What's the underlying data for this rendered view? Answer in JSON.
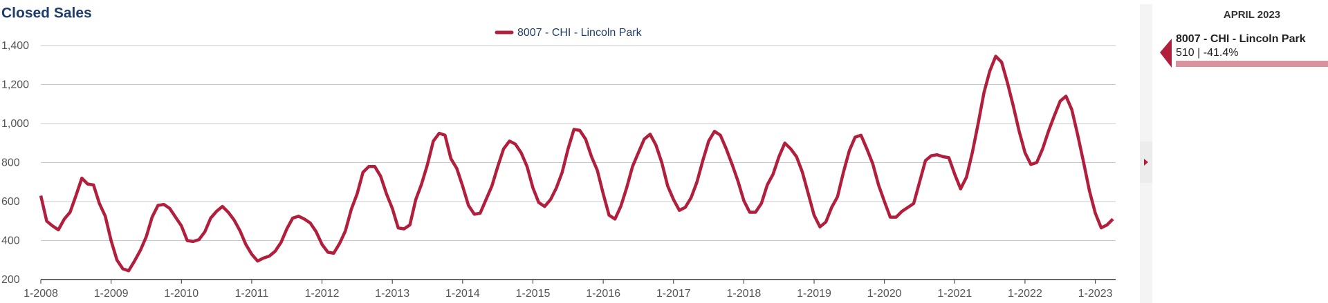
{
  "chart_data": {
    "type": "line",
    "title": "Closed Sales",
    "categories": [
      "1-2008",
      null,
      null,
      null,
      null,
      null,
      null,
      null,
      null,
      null,
      null,
      null,
      "1-2009",
      null,
      null,
      null,
      null,
      null,
      null,
      null,
      null,
      null,
      null,
      null,
      "1-2010",
      null,
      null,
      null,
      null,
      null,
      null,
      null,
      null,
      null,
      null,
      null,
      "1-2011",
      null,
      null,
      null,
      null,
      null,
      null,
      null,
      null,
      null,
      null,
      null,
      "1-2012",
      null,
      null,
      null,
      null,
      null,
      null,
      null,
      null,
      null,
      null,
      null,
      "1-2013",
      null,
      null,
      null,
      null,
      null,
      null,
      null,
      null,
      null,
      null,
      null,
      "1-2014",
      null,
      null,
      null,
      null,
      null,
      null,
      null,
      null,
      null,
      null,
      null,
      "1-2015",
      null,
      null,
      null,
      null,
      null,
      null,
      null,
      null,
      null,
      null,
      null,
      "1-2016",
      null,
      null,
      null,
      null,
      null,
      null,
      null,
      null,
      null,
      null,
      null,
      "1-2017",
      null,
      null,
      null,
      null,
      null,
      null,
      null,
      null,
      null,
      null,
      null,
      "1-2018",
      null,
      null,
      null,
      null,
      null,
      null,
      null,
      null,
      null,
      null,
      null,
      "1-2019",
      null,
      null,
      null,
      null,
      null,
      null,
      null,
      null,
      null,
      null,
      null,
      "1-2020",
      null,
      null,
      null,
      null,
      null,
      null,
      null,
      null,
      null,
      null,
      null,
      "1-2021",
      null,
      null,
      null,
      null,
      null,
      null,
      null,
      null,
      null,
      null,
      null,
      "1-2022",
      null,
      null,
      null,
      null,
      null,
      null,
      null,
      null,
      null,
      null,
      null,
      "1-2023",
      null,
      null,
      null
    ],
    "series": [
      {
        "name": "8007 - CHI - Lincoln Park",
        "color": "#b11f3d",
        "values": [
          630,
          500,
          475,
          455,
          510,
          545,
          630,
          720,
          690,
          685,
          590,
          525,
          400,
          300,
          255,
          245,
          295,
          350,
          420,
          520,
          580,
          585,
          565,
          520,
          475,
          400,
          395,
          405,
          445,
          515,
          550,
          575,
          545,
          505,
          450,
          380,
          330,
          295,
          310,
          320,
          345,
          390,
          460,
          515,
          525,
          510,
          490,
          445,
          380,
          340,
          335,
          385,
          450,
          560,
          640,
          750,
          780,
          780,
          730,
          640,
          565,
          465,
          460,
          480,
          610,
          690,
          790,
          910,
          950,
          940,
          820,
          770,
          680,
          580,
          535,
          540,
          610,
          680,
          780,
          870,
          910,
          895,
          850,
          780,
          670,
          595,
          575,
          610,
          670,
          750,
          870,
          970,
          965,
          920,
          830,
          760,
          640,
          530,
          510,
          575,
          670,
          780,
          850,
          920,
          945,
          890,
          800,
          680,
          610,
          555,
          570,
          620,
          700,
          810,
          910,
          960,
          940,
          870,
          790,
          705,
          605,
          545,
          545,
          590,
          685,
          740,
          830,
          900,
          870,
          830,
          750,
          640,
          530,
          470,
          495,
          570,
          625,
          750,
          860,
          930,
          940,
          870,
          795,
          685,
          600,
          520,
          520,
          550,
          570,
          590,
          700,
          810,
          835,
          840,
          830,
          825,
          740,
          665,
          725,
          850,
          1000,
          1160,
          1270,
          1345,
          1315,
          1210,
          1090,
          960,
          850,
          790,
          800,
          870,
          960,
          1040,
          1115,
          1140,
          1070,
          940,
          800,
          655,
          540,
          465,
          480,
          510
        ]
      }
    ],
    "ylim": [
      200,
      1400
    ],
    "yticks": [
      200,
      400,
      600,
      800,
      {
        "value": 1000,
        "label": "1,000"
      },
      {
        "value": 1200,
        "label": "1,200"
      },
      {
        "value": 1400,
        "label": "1,400"
      }
    ],
    "grid": true
  },
  "sidebar": {
    "period": "APRIL 2023",
    "name": "8007 - CHI - Lincoln Park",
    "summary": "510 | -41.4%"
  }
}
